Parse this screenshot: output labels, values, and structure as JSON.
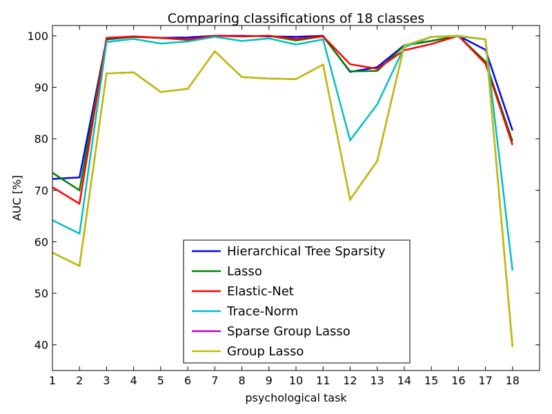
{
  "chart_data": {
    "type": "line",
    "title": "Comparing classifications of 18 classes",
    "xlabel": "psychological task",
    "ylabel": "AUC [%]",
    "x": [
      1,
      2,
      3,
      4,
      5,
      6,
      7,
      8,
      9,
      10,
      11,
      12,
      13,
      14,
      15,
      16,
      17,
      18
    ],
    "xlim": [
      1,
      19
    ],
    "ylim": [
      35,
      102
    ],
    "xticks": [
      "1",
      "2",
      "3",
      "4",
      "5",
      "6",
      "7",
      "8",
      "9",
      "10",
      "11",
      "12",
      "13",
      "14",
      "15",
      "16",
      "17",
      "18"
    ],
    "yticks": [
      "40",
      "50",
      "60",
      "70",
      "80",
      "90",
      "100"
    ],
    "grid": false,
    "legend_position": "lower-center",
    "series": [
      {
        "name": "Hierarchical Tree Sparsity",
        "color": "#0000ff",
        "values": [
          72.2,
          72.5,
          99.3,
          99.8,
          99.6,
          99.7,
          100.0,
          100.0,
          99.9,
          99.8,
          100.0,
          93.0,
          93.9,
          98.2,
          99.0,
          100.0,
          97.3,
          81.6
        ]
      },
      {
        "name": "Lasso",
        "color": "#008000",
        "values": [
          73.4,
          70.0,
          99.4,
          99.8,
          99.6,
          99.2,
          100.0,
          99.9,
          100.0,
          99.1,
          99.9,
          93.1,
          93.2,
          98.1,
          99.0,
          100.0,
          95.0,
          79.5
        ]
      },
      {
        "name": "Elastic-Net",
        "color": "#ff0000",
        "values": [
          70.6,
          67.4,
          99.6,
          99.9,
          99.6,
          99.3,
          100.0,
          99.9,
          100.0,
          99.4,
          99.9,
          94.5,
          93.6,
          97.2,
          98.4,
          100.0,
          94.6,
          78.8
        ]
      },
      {
        "name": "Trace-Norm",
        "color": "#00bfbf",
        "values": [
          64.2,
          61.6,
          98.8,
          99.4,
          98.5,
          98.9,
          99.8,
          99.0,
          99.5,
          98.3,
          99.3,
          79.7,
          86.7,
          97.8,
          99.8,
          99.9,
          99.3,
          54.4
        ]
      },
      {
        "name": "Sparse Group Lasso",
        "color": "#bf00bf",
        "values": [
          57.9,
          55.3,
          92.7,
          92.9,
          89.1,
          89.7,
          97.0,
          92.0,
          91.7,
          91.6,
          94.4,
          68.2,
          75.7,
          98.1,
          99.8,
          100.0,
          99.3,
          39.6
        ]
      },
      {
        "name": "Group Lasso",
        "color": "#bfbf00",
        "values": [
          57.9,
          55.3,
          92.7,
          92.9,
          89.1,
          89.7,
          97.0,
          92.0,
          91.7,
          91.6,
          94.4,
          68.2,
          75.7,
          98.1,
          99.8,
          100.0,
          99.3,
          39.6
        ]
      }
    ]
  }
}
